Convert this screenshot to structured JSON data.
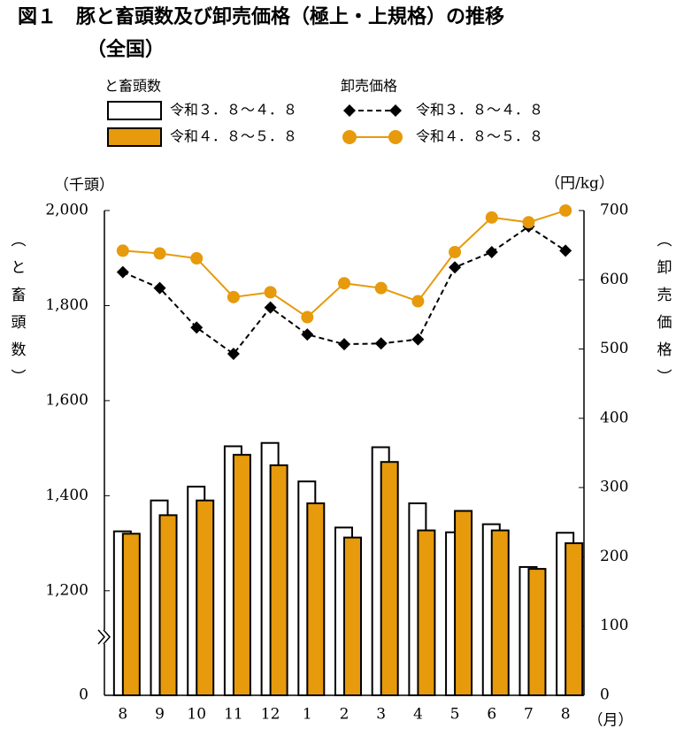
{
  "chart_data": {
    "type": "bar_line",
    "title": "図１　豚と畜頭数及び卸売価格（極上・上規格）の推移",
    "subtitle": "（全国）",
    "bar_legend_title": "と畜頭数",
    "line_legend_title": "卸売価格",
    "ylabel": "（と畜頭数）",
    "y2label": "（卸売価格）",
    "y_unit": "（千頭）",
    "y2_unit": "（円/kg）",
    "x_unit": "（月）",
    "categories": [
      "8",
      "9",
      "10",
      "11",
      "12",
      "1",
      "2",
      "3",
      "4",
      "5",
      "6",
      "7",
      "8"
    ],
    "ylim": [
      0,
      2000
    ],
    "y_break": [
      0,
      980
    ],
    "yticks": [
      0,
      {
        "value": 1200,
        "label": "1,200"
      },
      {
        "value": 1400,
        "label": "1,400"
      },
      {
        "value": 1600,
        "label": "1,600"
      },
      {
        "value": 1800,
        "label": "1,800"
      },
      {
        "value": 2000,
        "label": "2,000"
      }
    ],
    "y2lim": [
      0,
      700
    ],
    "y2ticks": [
      0,
      100,
      200,
      300,
      400,
      500,
      600,
      700
    ],
    "series": [
      {
        "name": "令和３．８～４．８",
        "type": "bar",
        "color": "#ffffff",
        "values": [
          1325,
          1390,
          1419,
          1504,
          1511,
          1430,
          1333,
          1502,
          1384,
          1323,
          1340,
          1250,
          1322
        ]
      },
      {
        "name": "令和４．８～５．８",
        "type": "bar",
        "color": "#e69a0c",
        "values": [
          1320,
          1359,
          1390,
          1486,
          1464,
          1384,
          1312,
          1471,
          1327,
          1368,
          1327,
          1246,
          1300
        ]
      },
      {
        "name": "令和３．８～４．８",
        "type": "line",
        "axis": "y2",
        "color": "#000000",
        "values": [
          611,
          588,
          531,
          493,
          560,
          521,
          507,
          508,
          514,
          618,
          640,
          677,
          642
        ]
      },
      {
        "name": "令和４．８～５．８",
        "type": "line",
        "axis": "y2",
        "color": "#e69a0c",
        "values": [
          642,
          638,
          631,
          575,
          582,
          546,
          595,
          588,
          569,
          640,
          690,
          683,
          700
        ]
      }
    ]
  }
}
